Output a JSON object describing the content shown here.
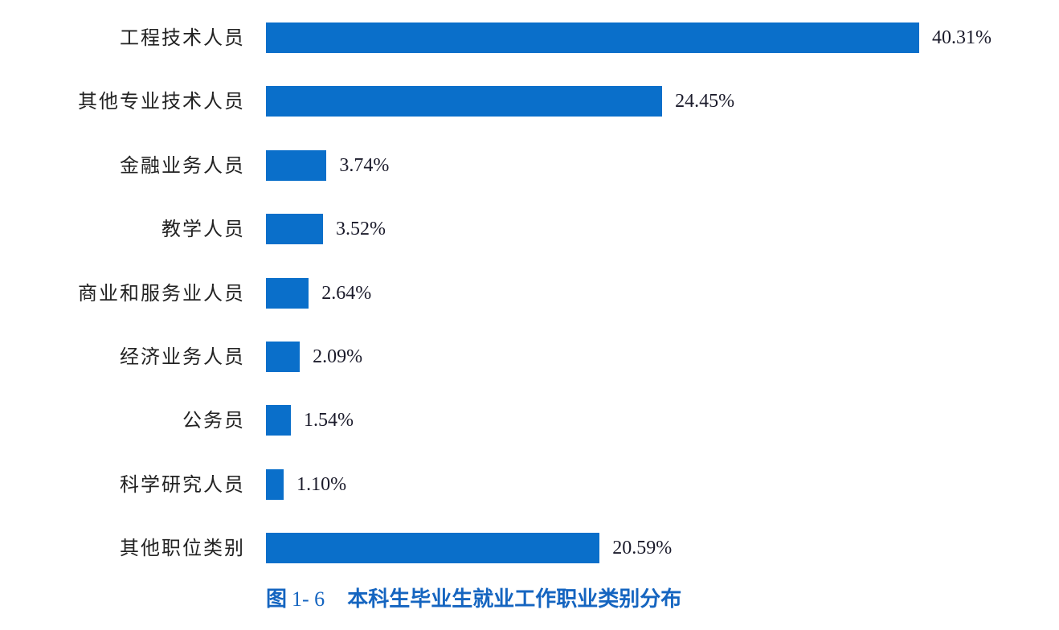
{
  "chart_data": {
    "type": "bar",
    "orientation": "horizontal",
    "title": "图 1- 6 本科生毕业生就业工作职业类别分布",
    "caption": {
      "prefix": "图",
      "number": "1- 6",
      "text": "本科生毕业生就业工作职业类别分布"
    },
    "categories": [
      "工程技术人员",
      "其他专业技术人员",
      "金融业务人员",
      "教学人员",
      "商业和服务业人员",
      "经济业务人员",
      "公务员",
      "科学研究人员",
      "其他职位类别"
    ],
    "values": [
      40.31,
      24.45,
      3.74,
      3.52,
      2.64,
      2.09,
      1.54,
      1.1,
      20.59
    ],
    "labels": [
      "40.31%",
      "24.45%",
      "3.74%",
      "3.52%",
      "2.64%",
      "2.09%",
      "1.54%",
      "1.10%",
      "20.59%"
    ],
    "unit": "%",
    "xlabel": "",
    "ylabel": "",
    "grid": false,
    "legend": null,
    "bar_color": "#0a6fca",
    "caption_color": "#1565c0"
  }
}
